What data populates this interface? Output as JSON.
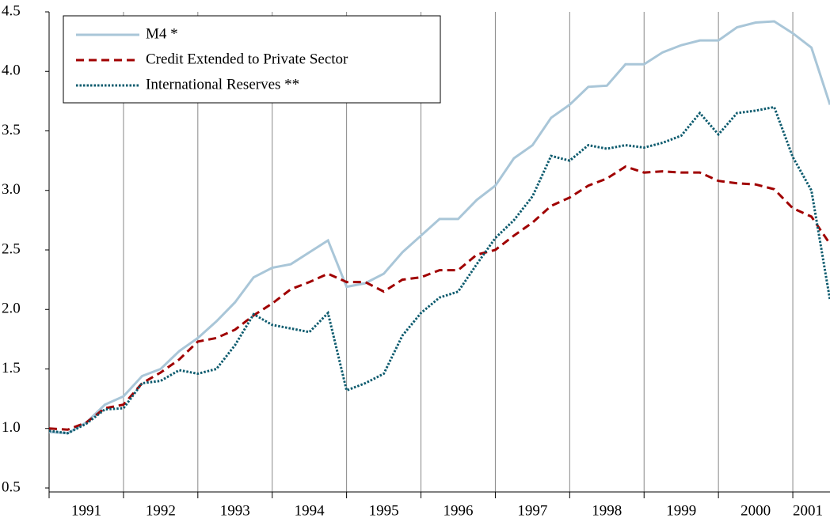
{
  "chart_data": {
    "type": "line",
    "x": [
      1991,
      1991.25,
      1991.5,
      1991.75,
      1992,
      1992.25,
      1992.5,
      1992.75,
      1993,
      1993.25,
      1993.5,
      1993.75,
      1994,
      1994.25,
      1994.5,
      1994.75,
      1995,
      1995.25,
      1995.5,
      1995.75,
      1996,
      1996.25,
      1996.5,
      1996.75,
      1997,
      1997.25,
      1997.5,
      1997.75,
      1998,
      1998.25,
      1998.5,
      1998.75,
      1999,
      1999.25,
      1999.5,
      1999.75,
      2000,
      2000.25,
      2000.5,
      2000.75,
      2001,
      2001.25,
      2001.5
    ],
    "series": [
      {
        "name": "M4 *",
        "color": "#a9c6d8",
        "style": "solid",
        "values": [
          0.97,
          0.96,
          1.05,
          1.2,
          1.27,
          1.44,
          1.5,
          1.65,
          1.76,
          1.9,
          2.06,
          2.27,
          2.35,
          2.38,
          2.48,
          2.58,
          2.19,
          2.22,
          2.3,
          2.48,
          2.62,
          2.76,
          2.76,
          2.92,
          3.04,
          3.27,
          3.38,
          3.61,
          3.72,
          3.87,
          3.88,
          4.06,
          4.06,
          4.16,
          4.22,
          4.26,
          4.26,
          4.37,
          4.41,
          4.42,
          4.32,
          4.2,
          3.72
        ]
      },
      {
        "name": "Credit Extended to Private Sector",
        "color": "#a00000",
        "style": "dashed",
        "values": [
          1.0,
          0.99,
          1.05,
          1.17,
          1.2,
          1.38,
          1.47,
          1.58,
          1.73,
          1.76,
          1.83,
          1.95,
          2.05,
          2.17,
          2.23,
          2.3,
          2.23,
          2.23,
          2.15,
          2.25,
          2.27,
          2.33,
          2.33,
          2.46,
          2.5,
          2.62,
          2.73,
          2.87,
          2.94,
          3.04,
          3.1,
          3.2,
          3.15,
          3.16,
          3.15,
          3.15,
          3.08,
          3.06,
          3.05,
          3.01,
          2.85,
          2.78,
          2.55
        ]
      },
      {
        "name": "International Reserves **",
        "color": "#0d5b6e",
        "style": "dotted",
        "values": [
          0.98,
          0.96,
          1.04,
          1.16,
          1.17,
          1.38,
          1.4,
          1.49,
          1.46,
          1.5,
          1.7,
          1.96,
          1.87,
          1.84,
          1.81,
          1.97,
          1.32,
          1.38,
          1.46,
          1.78,
          1.97,
          2.1,
          2.15,
          2.38,
          2.6,
          2.75,
          2.95,
          3.29,
          3.25,
          3.38,
          3.35,
          3.38,
          3.36,
          3.4,
          3.46,
          3.65,
          3.47,
          3.65,
          3.67,
          3.7,
          3.28,
          3.0,
          2.08
        ]
      }
    ],
    "xlim": [
      1991,
      2001.5
    ],
    "xticks": [
      1991,
      1992,
      1993,
      1994,
      1995,
      1996,
      1997,
      1998,
      1999,
      2000,
      2001
    ],
    "ylim": [
      0.5,
      4.5
    ],
    "yticks": [
      0.5,
      {
        "value": 1,
        "label": "1.0"
      },
      1.5,
      {
        "value": 2,
        "label": "2.0"
      },
      2.5,
      {
        "value": 3,
        "label": "3.0"
      },
      3.5,
      {
        "value": 4,
        "label": "4.0"
      },
      4.5
    ],
    "grid": true,
    "legend": "upper left"
  }
}
